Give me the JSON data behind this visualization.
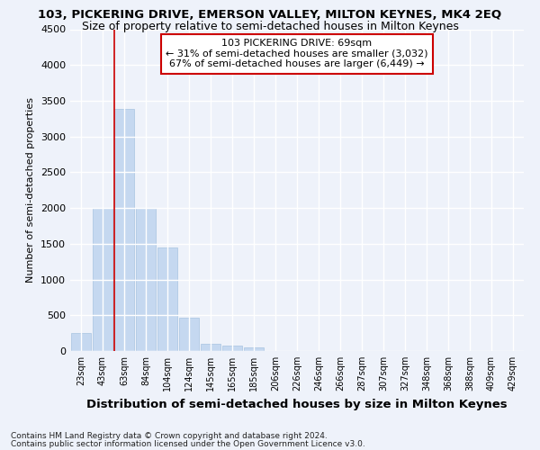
{
  "title1": "103, PICKERING DRIVE, EMERSON VALLEY, MILTON KEYNES, MK4 2EQ",
  "title2": "Size of property relative to semi-detached houses in Milton Keynes",
  "xlabel": "Distribution of semi-detached houses by size in Milton Keynes",
  "ylabel": "Number of semi-detached properties",
  "footnote1": "Contains HM Land Registry data © Crown copyright and database right 2024.",
  "footnote2": "Contains public sector information licensed under the Open Government Licence v3.0.",
  "bar_labels": [
    "23sqm",
    "43sqm",
    "63sqm",
    "84sqm",
    "104sqm",
    "124sqm",
    "145sqm",
    "165sqm",
    "185sqm",
    "206sqm",
    "226sqm",
    "246sqm",
    "266sqm",
    "287sqm",
    "307sqm",
    "327sqm",
    "348sqm",
    "368sqm",
    "388sqm",
    "409sqm",
    "429sqm"
  ],
  "bar_values": [
    250,
    2000,
    3380,
    2000,
    1450,
    460,
    100,
    70,
    50,
    0,
    0,
    0,
    0,
    0,
    0,
    0,
    0,
    0,
    0,
    0,
    0
  ],
  "bar_color": "#c5d8f0",
  "bar_edge_color": "#a8c4e0",
  "line_label": "103 PICKERING DRIVE: 69sqm",
  "annotation_line1": "← 31% of semi-detached houses are smaller (3,032)",
  "annotation_line2": "67% of semi-detached houses are larger (6,449) →",
  "ylim": [
    0,
    4500
  ],
  "yticks": [
    0,
    500,
    1000,
    1500,
    2000,
    2500,
    3000,
    3500,
    4000,
    4500
  ],
  "background_color": "#eef2fa",
  "grid_color": "#ffffff",
  "annotation_box_color": "#ffffff",
  "annotation_box_edge": "#cc0000",
  "line_color": "#cc0000",
  "title1_fontsize": 9.5,
  "title2_fontsize": 9,
  "ylabel_fontsize": 8,
  "xlabel_fontsize": 9.5
}
